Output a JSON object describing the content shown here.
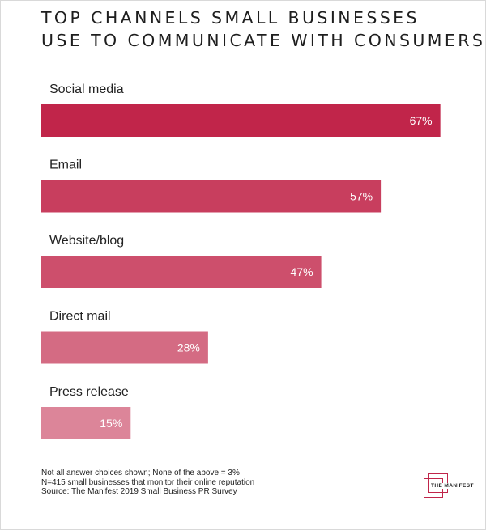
{
  "header": {
    "title_line1": "TOP CHANNELS SMALL BUSINESSES",
    "title_line2": "USE TO COMMUNICATE WITH CONSUMERS"
  },
  "chart_data": {
    "type": "bar",
    "orientation": "horizontal",
    "title": "TOP CHANNELS SMALL BUSINESSES USE TO COMMUNICATE WITH CONSUMERS",
    "categories": [
      "Social media",
      "Email",
      "Website/blog",
      "Direct mail",
      "Press release"
    ],
    "values": [
      67,
      57,
      47,
      28,
      15
    ],
    "value_labels": [
      "67%",
      "57%",
      "47%",
      "28%",
      "15%"
    ],
    "colors": [
      "#c1254a",
      "#c83e5e",
      "#cd4f6c",
      "#d46b83",
      "#dc8599"
    ],
    "xlim": [
      0,
      68
    ],
    "grid": false,
    "legend": "none"
  },
  "footnotes": {
    "line1": "Not all answer choices shown; None of the above = 3%",
    "line2": "N=415 small businesses that monitor their online reputation",
    "line3": "Source: The Manifest 2019 Small Business PR Survey"
  },
  "logo": {
    "text": "THE MANIFEST",
    "color": "#c0254a"
  }
}
